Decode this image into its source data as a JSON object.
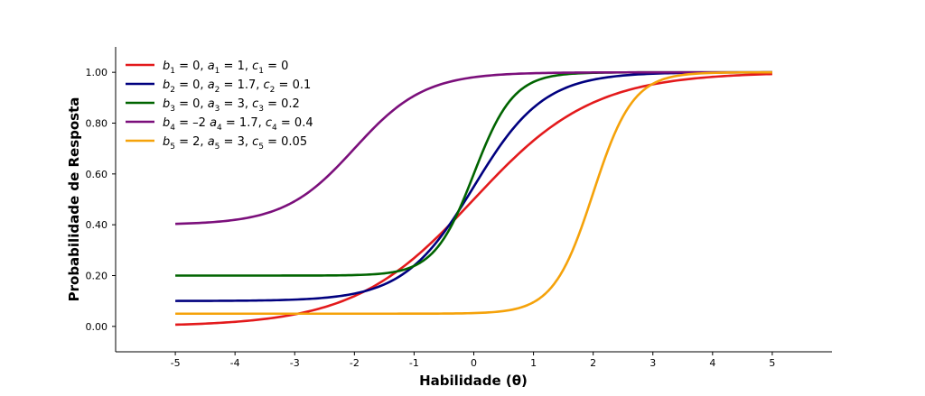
{
  "chart_data": {
    "type": "line",
    "title": "",
    "xlabel": "Habilidade (θ)",
    "ylabel": "Probabilidade de Resposta",
    "xlim": [
      -6,
      6
    ],
    "ylim": [
      -0.1,
      1.1
    ],
    "x_ticks": [
      "-5",
      "-4",
      "-3",
      "-2",
      "-1",
      "0",
      "1",
      "2",
      "3",
      "4",
      "5"
    ],
    "y_ticks": [
      "0.00",
      "0.20",
      "0.40",
      "0.60",
      "0.80",
      "1.00"
    ],
    "x_range": [
      -5,
      5
    ],
    "grid": false,
    "legend_position": "top-left",
    "series": [
      {
        "color": "#e31a1c",
        "b": 0,
        "a": 1,
        "c": 0,
        "label": [
          [
            "b",
            "1",
            " = 0, "
          ],
          [
            "a",
            "1",
            " = 1, "
          ],
          [
            "c",
            "1",
            " = 0"
          ]
        ],
        "x": [
          -5,
          -4,
          -3,
          -2,
          -1,
          0,
          1,
          2,
          3,
          4,
          5
        ],
        "values": [
          0.007,
          0.018,
          0.047,
          0.119,
          0.269,
          0.5,
          0.731,
          0.881,
          0.953,
          0.982,
          0.993
        ]
      },
      {
        "color": "#00007f",
        "b": 0,
        "a": 1.7,
        "c": 0.1,
        "label": [
          [
            "b",
            "2",
            " = 0, "
          ],
          [
            "a",
            "2",
            " = 1.7, "
          ],
          [
            "c",
            "2",
            " = 0.1"
          ]
        ],
        "x": [
          -5,
          -4,
          -3,
          -2,
          -1,
          0,
          1,
          2,
          3,
          4,
          5
        ],
        "values": [
          0.1,
          0.101,
          0.105,
          0.13,
          0.254,
          0.55,
          0.846,
          0.97,
          0.995,
          0.999,
          1.0
        ]
      },
      {
        "color": "#006400",
        "b": 0,
        "a": 3,
        "c": 0.2,
        "label": [
          [
            "b",
            "3",
            " = 0, "
          ],
          [
            "a",
            "3",
            " = 3, "
          ],
          [
            "c",
            "3",
            " = 0.2"
          ]
        ],
        "x": [
          -5,
          -4,
          -3,
          -2,
          -1,
          0,
          1,
          2,
          3,
          4,
          5
        ],
        "values": [
          0.2,
          0.2,
          0.2,
          0.202,
          0.238,
          0.6,
          0.962,
          0.998,
          1.0,
          1.0,
          1.0
        ]
      },
      {
        "color": "#7b0f7b",
        "b": -2,
        "a": 1.7,
        "c": 0.4,
        "label": [
          [
            "b",
            "4",
            " = –2 "
          ],
          [
            "a",
            "4",
            " = 1.7, "
          ],
          [
            "c",
            "4",
            " = 0.4"
          ]
        ],
        "x": [
          -5,
          -4,
          -3,
          -2,
          -1,
          0,
          1,
          2,
          3,
          4,
          5
        ],
        "values": [
          0.404,
          0.42,
          0.508,
          0.7,
          0.892,
          0.98,
          0.997,
          1.0,
          1.0,
          1.0,
          1.0
        ]
      },
      {
        "color": "#f5a20a",
        "b": 2,
        "a": 3,
        "c": 0.05,
        "label": [
          [
            "b",
            "5",
            " = 2, "
          ],
          [
            "a",
            "5",
            " = 3, "
          ],
          [
            "c",
            "5",
            " = 0.05"
          ]
        ],
        "x": [
          -5,
          -4,
          -3,
          -2,
          -1,
          0,
          1,
          2,
          3,
          4,
          5
        ],
        "values": [
          0.05,
          0.05,
          0.05,
          0.05,
          0.05,
          0.052,
          0.095,
          0.525,
          0.955,
          0.998,
          1.0
        ]
      }
    ]
  }
}
